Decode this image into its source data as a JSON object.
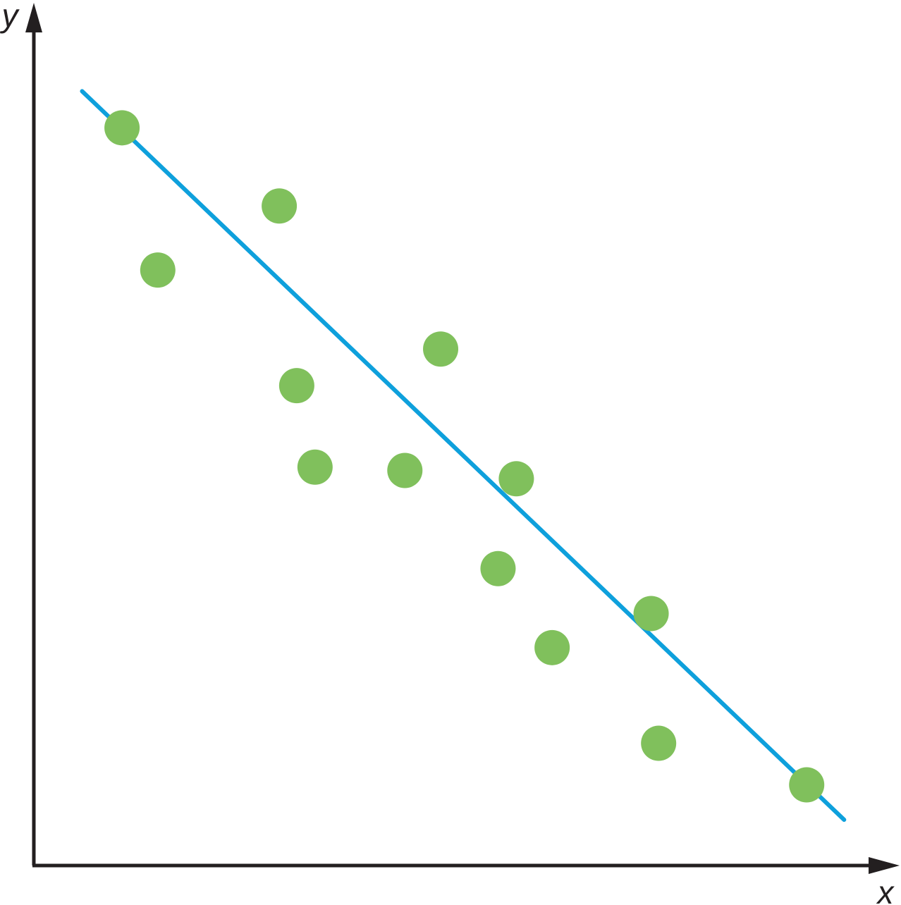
{
  "chart_data": {
    "type": "scatter",
    "x_label": "x",
    "y_label": "y",
    "x": [
      10.6,
      14.9,
      29.5,
      31.6,
      33.8,
      44.6,
      48.9,
      58.0,
      55.8,
      62.3,
      74.2,
      75.1,
      92.9
    ],
    "values": [
      88.7,
      71.6,
      79.3,
      57.7,
      47.9,
      47.5,
      62.1,
      46.5,
      35.7,
      26.2,
      30.3,
      14.7,
      9.7
    ],
    "color": "#80c05c",
    "trend": {
      "x": [
        5.8,
        97.4
      ],
      "values": [
        93.1,
        5.5
      ],
      "color": "#0ea0dc"
    },
    "xlim": [
      0,
      100
    ],
    "ylim": [
      0,
      100
    ]
  }
}
